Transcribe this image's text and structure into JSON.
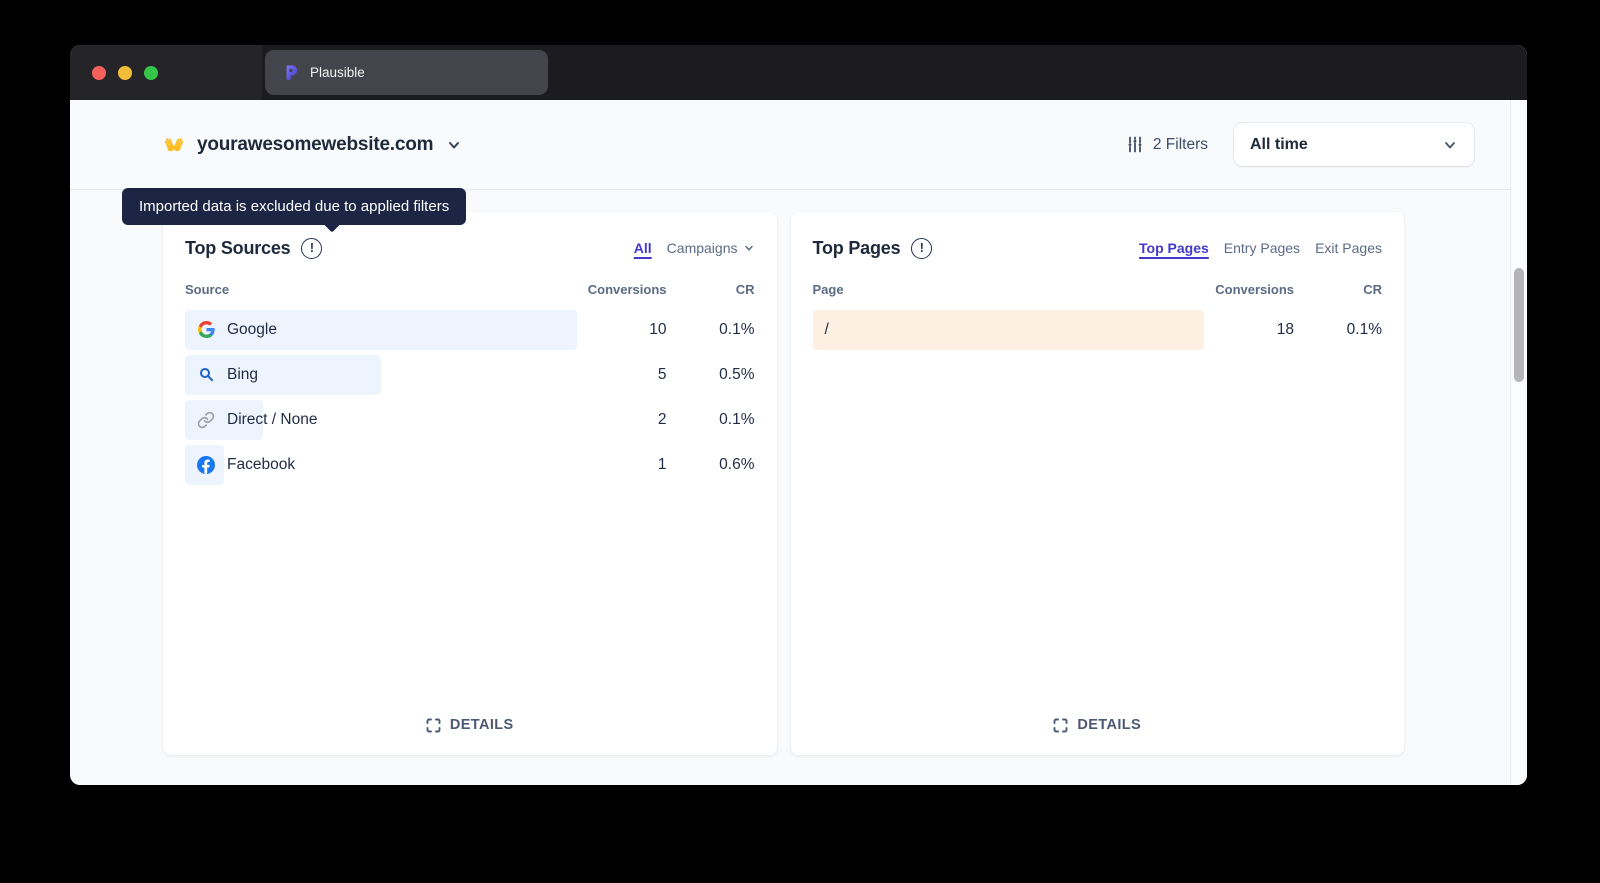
{
  "window": {
    "tab_title": "Plausible"
  },
  "header": {
    "site_name": "yourawesomewebsite.com",
    "filters_label": "2 Filters",
    "date_range": "All time"
  },
  "tooltip": {
    "text": "Imported data is excluded due to applied filters"
  },
  "colors": {
    "accent_indigo": "#4338ca",
    "sources_bar": "#edf4fd",
    "pages_bar": "#fdf0e3",
    "tooltip_bg": "#1d2544"
  },
  "cards": [
    {
      "title": "Top Sources",
      "info_mark": "!",
      "tabs": [
        {
          "label": "All",
          "active": true
        },
        {
          "label": "Campaigns",
          "active": false
        }
      ],
      "columns": [
        "Source",
        "Conversions",
        "CR"
      ],
      "bar_color": "#edf4fd",
      "rows": [
        {
          "label": "Google",
          "icon": "google-icon",
          "conversions": "10",
          "cr": "0.1%",
          "bar_pct": 100
        },
        {
          "label": "Bing",
          "icon": "bing-search-icon",
          "conversions": "5",
          "cr": "0.5%",
          "bar_pct": 50
        },
        {
          "label": "Direct / None",
          "icon": "link-icon",
          "conversions": "2",
          "cr": "0.1%",
          "bar_pct": 20
        },
        {
          "label": "Facebook",
          "icon": "facebook-icon",
          "conversions": "1",
          "cr": "0.6%",
          "bar_pct": 10
        }
      ],
      "details_label": "DETAILS"
    },
    {
      "title": "Top Pages",
      "info_mark": "!",
      "tabs": [
        {
          "label": "Top Pages",
          "active": true
        },
        {
          "label": "Entry Pages",
          "active": false
        },
        {
          "label": "Exit Pages",
          "active": false
        }
      ],
      "columns": [
        "Page",
        "Conversions",
        "CR"
      ],
      "bar_color": "#fdf0e3",
      "rows": [
        {
          "label": "/",
          "icon": null,
          "conversions": "18",
          "cr": "0.1%",
          "bar_pct": 100
        }
      ],
      "details_label": "DETAILS"
    }
  ]
}
